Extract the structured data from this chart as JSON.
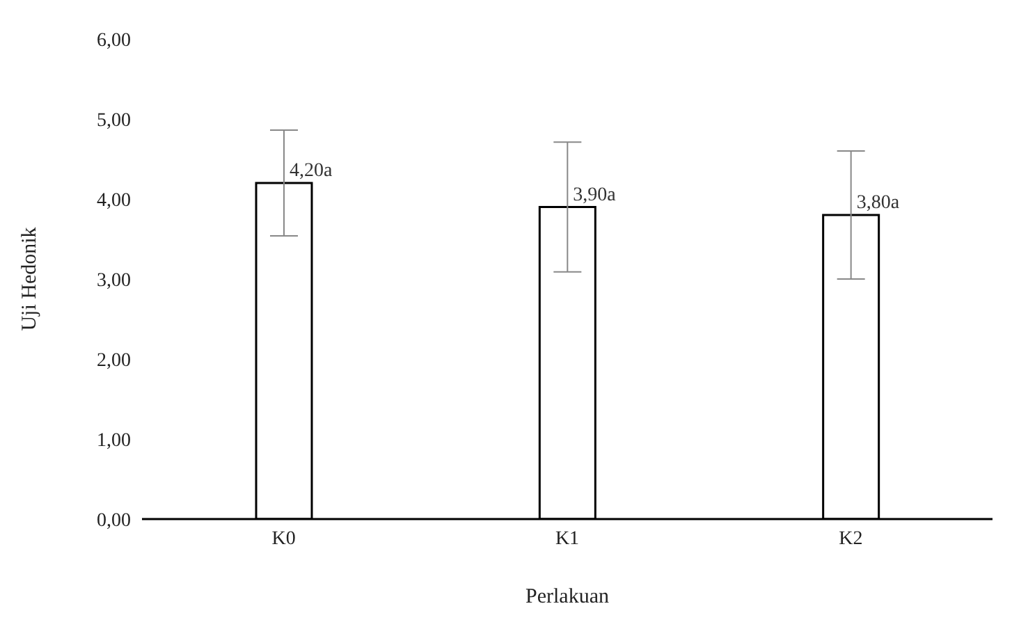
{
  "chart_data": {
    "type": "bar",
    "xlabel": "Perlakuan",
    "ylabel": "Uji Hedonik",
    "categories": [
      "K0",
      "K1",
      "K2"
    ],
    "series": [
      {
        "color": "#ffffff",
        "values": [
          4.2,
          3.9,
          3.8
        ],
        "errors": [
          0.66,
          0.81,
          0.8
        ],
        "value_labels": [
          "4,20a",
          "3,90a",
          "3,80a"
        ]
      }
    ],
    "ylim": [
      0,
      6
    ],
    "yticks": [
      {
        "value": 0,
        "label": "0,00"
      },
      {
        "value": 1,
        "label": "1,00"
      },
      {
        "value": 2,
        "label": "2,00"
      },
      {
        "value": 3,
        "label": "3,00"
      },
      {
        "value": 4,
        "label": "4,00"
      },
      {
        "value": 5,
        "label": "5,00"
      },
      {
        "value": 6,
        "label": "6,00"
      }
    ],
    "grid": false,
    "legend": false
  }
}
